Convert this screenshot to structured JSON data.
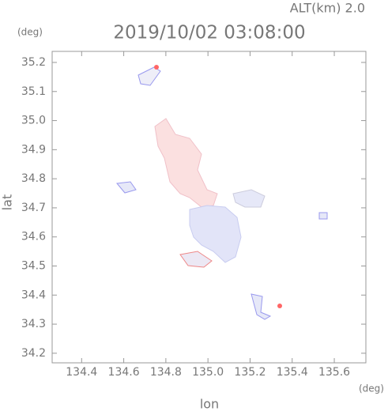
{
  "chart_data": {
    "type": "map",
    "title": "2019/10/02 03:08:00",
    "subtitle": "ALT(km) 2.0",
    "y_unit": "(deg)",
    "x_unit": "(deg)",
    "ylabel": "lat",
    "xlabel": "lon",
    "xlim": [
      134.26,
      135.75
    ],
    "xticks": [
      134.4,
      134.6,
      134.8,
      {
        "value": 135,
        "label": "135.0"
      },
      135.2,
      135.4,
      135.6
    ],
    "ylim": [
      34.167,
      35.238
    ],
    "yticks": [
      34.2,
      34.3,
      34.4,
      34.5,
      34.6,
      34.7,
      34.8,
      34.9,
      {
        "value": 35,
        "label": "35.0"
      },
      35.1,
      35.2
    ]
  }
}
